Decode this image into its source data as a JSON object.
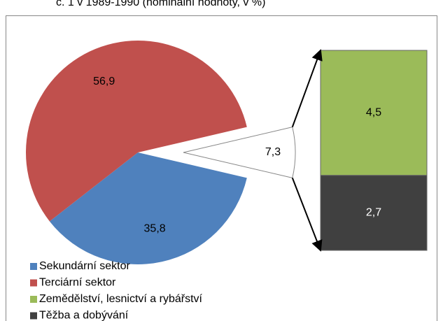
{
  "chart_data": {
    "type": "pie_of_bar",
    "title": "č. 1 v 1989-1990 (nominální hodnoty, v %)",
    "pie": {
      "categories": [
        "Sekundární sektor",
        "Terciární sektor",
        null
      ],
      "values": [
        35.8,
        56.9,
        7.3
      ],
      "value_labels": [
        "35,8",
        "56,9",
        "7,3"
      ],
      "colors": [
        "#4f81bd",
        "#c0504d",
        "#ffffff"
      ]
    },
    "bar": {
      "categories": [
        "Zemědělství, lesnictví a rybářství",
        "Těžba a dobývání"
      ],
      "values": [
        4.5,
        2.7
      ],
      "value_labels": [
        "4,5",
        "2,7"
      ],
      "colors": [
        "#9bbb59",
        "#404040"
      ]
    }
  }
}
